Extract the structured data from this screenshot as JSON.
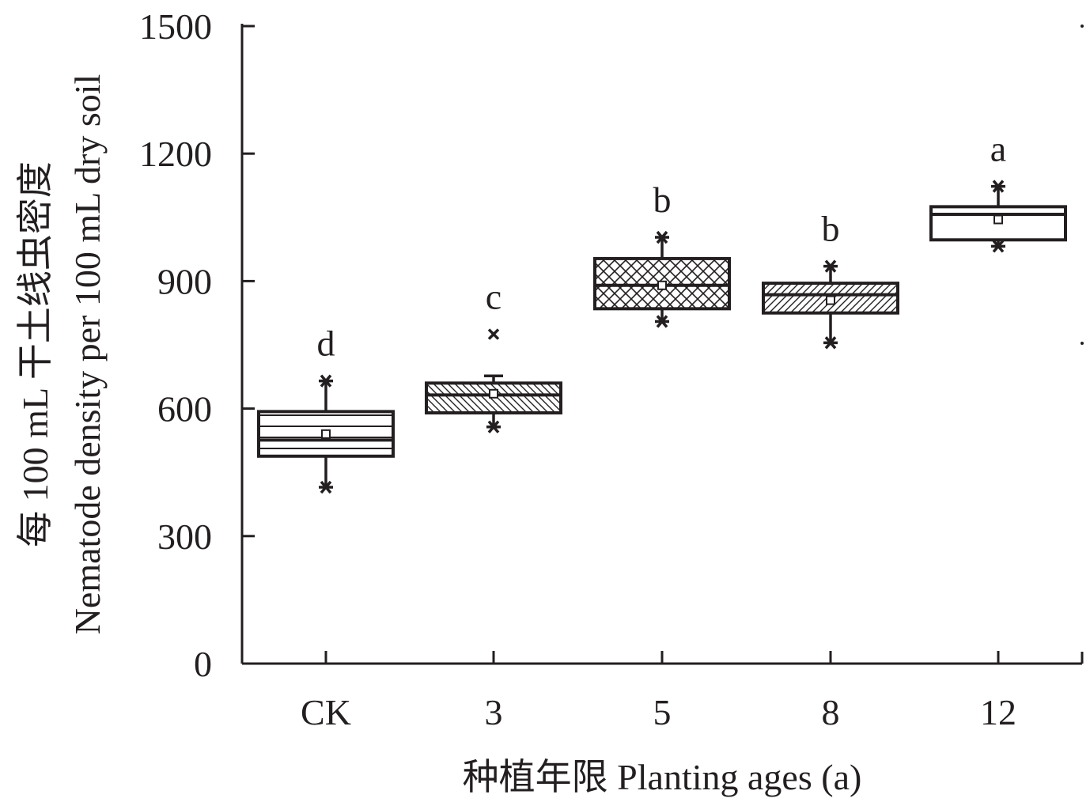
{
  "chart_data": {
    "type": "box",
    "title": "",
    "xlabel": "种植年限 Planting ages (a)",
    "ylabel_cn": "每 100 mL 干土线虫密度",
    "ylabel_en": "Nematode density per 100 mL dry soil",
    "ylim": [
      0,
      1500
    ],
    "yticks": [
      0,
      300,
      600,
      900,
      1200,
      1500
    ],
    "ytick_labels": [
      "0",
      "300",
      "600",
      "900",
      "1200",
      "1500"
    ],
    "categories": [
      "CK",
      "3",
      "5",
      "8",
      "12"
    ],
    "boxes": [
      {
        "category": "CK",
        "q1": 488,
        "median": 526,
        "q3": 593,
        "mean": 540,
        "whisker_low": 415,
        "whisker_high": 665,
        "outliers": [],
        "letter": "d",
        "pattern": "horizontal"
      },
      {
        "category": "3",
        "q1": 590,
        "median": 632,
        "q3": 660,
        "mean": 635,
        "whisker_low": 557,
        "whisker_high": 677,
        "outliers": [
          775
        ],
        "letter": "c",
        "pattern": "diagonal-back"
      },
      {
        "category": "5",
        "q1": 835,
        "median": 890,
        "q3": 953,
        "mean": 890,
        "whisker_low": 805,
        "whisker_high": 1003,
        "outliers": [],
        "letter": "b",
        "pattern": "crosshatch"
      },
      {
        "category": "8",
        "q1": 825,
        "median": 868,
        "q3": 895,
        "mean": 855,
        "whisker_low": 755,
        "whisker_high": 935,
        "outliers": [],
        "letter": "b",
        "pattern": "diagonal-forward"
      },
      {
        "category": "12",
        "q1": 997,
        "median": 1057,
        "q3": 1075,
        "mean": 1045,
        "whisker_low": 982,
        "whisker_high": 1123,
        "outliers": [],
        "letter": "a",
        "pattern": "none"
      }
    ]
  }
}
